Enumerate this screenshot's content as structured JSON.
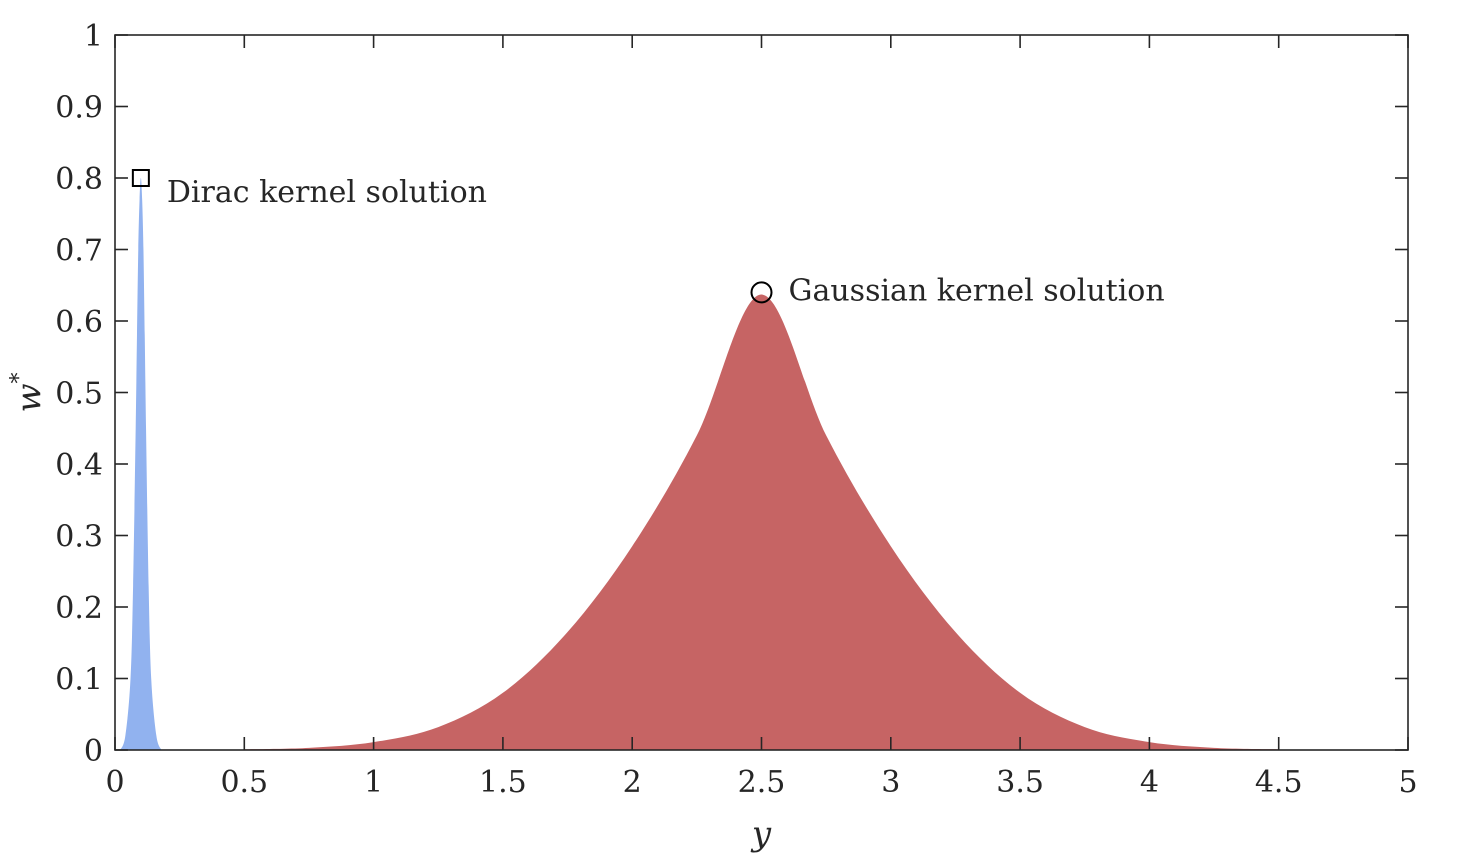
{
  "chart_data": {
    "type": "area",
    "xlabel": "y",
    "ylabel": "w",
    "ylabel_superscript": "*",
    "xlim": [
      0,
      5
    ],
    "ylim": [
      0,
      1
    ],
    "grid": false,
    "box": true,
    "xticks": [
      0,
      0.5,
      1,
      1.5,
      2,
      2.5,
      3,
      3.5,
      4,
      4.5,
      5
    ],
    "xtick_labels": [
      "0",
      "0.5",
      "1",
      "1.5",
      "2",
      "2.5",
      "3",
      "3.5",
      "4",
      "4.5",
      "5"
    ],
    "yticks": [
      0,
      0.1,
      0.2,
      0.3,
      0.4,
      0.5,
      0.6,
      0.7,
      0.8,
      0.9,
      1
    ],
    "ytick_labels": [
      "0",
      "0.1",
      "0.2",
      "0.3",
      "0.4",
      "0.5",
      "0.6",
      "0.7",
      "0.8",
      "0.9",
      "1"
    ],
    "series": [
      {
        "color": "#91b2ef",
        "x": [
          0.02,
          0.04,
          0.06,
          0.07,
          0.08,
          0.085,
          0.09,
          0.095,
          0.1,
          0.105,
          0.11,
          0.115,
          0.12,
          0.13,
          0.14,
          0.16,
          0.18
        ],
        "y": [
          0.0,
          0.02,
          0.1,
          0.23,
          0.45,
          0.58,
          0.7,
          0.77,
          0.8,
          0.77,
          0.7,
          0.58,
          0.45,
          0.23,
          0.1,
          0.02,
          0.0
        ]
      },
      {
        "color": "#c66464",
        "x": [
          0.5,
          0.75,
          1.0,
          1.25,
          1.5,
          1.75,
          2.0,
          2.25,
          2.5,
          2.75,
          3.0,
          3.25,
          3.5,
          3.75,
          4.0,
          4.25,
          4.5
        ],
        "y": [
          0.001,
          0.003,
          0.011,
          0.032,
          0.08,
          0.165,
          0.285,
          0.44,
          0.637,
          0.44,
          0.285,
          0.165,
          0.08,
          0.032,
          0.011,
          0.003,
          0.001
        ]
      }
    ],
    "markers": [
      {
        "shape": "square",
        "x": 0.1,
        "y": 0.8,
        "label": "Dirac kernel solution"
      },
      {
        "shape": "circle",
        "x": 2.5,
        "y": 0.64,
        "label": "Gaussian kernel solution"
      }
    ],
    "colors": {
      "axis": "#262626",
      "background": "#ffffff"
    }
  }
}
